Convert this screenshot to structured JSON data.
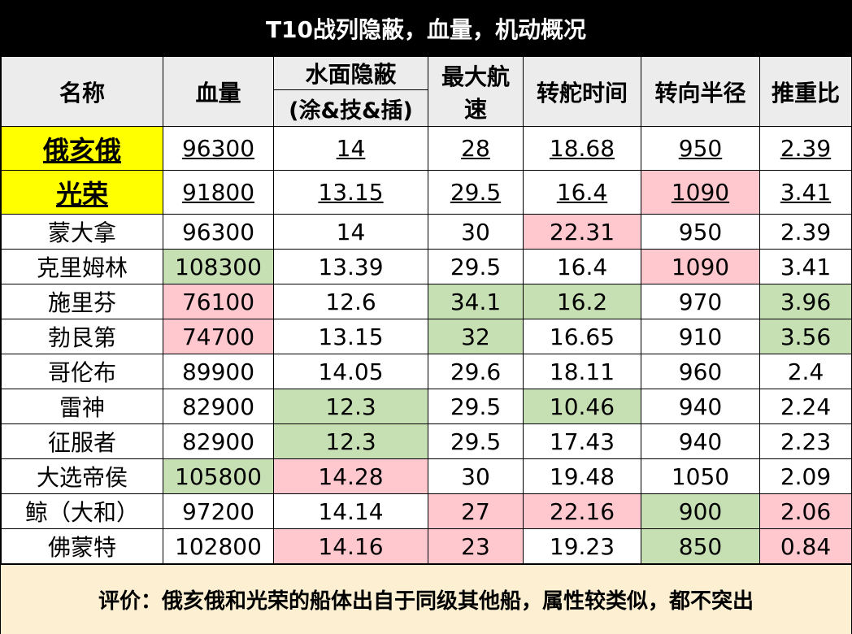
{
  "title": "T10战列隐蔽，血量，机动概况",
  "headers": {
    "name": "名称",
    "hp": "血量",
    "conceal_top": "水面隐蔽",
    "conceal_sub": "(涂&技&插)",
    "speed_l1": "最大航",
    "speed_l2": "速",
    "rudder": "转舵时间",
    "turn": "转向半径",
    "thrust": "推重比"
  },
  "rows": [
    {
      "name": "俄亥俄",
      "hp": "96300",
      "conceal": "14",
      "speed": "28",
      "rudder": "18.68",
      "turn": "950",
      "thrust": "2.39",
      "highlight": true,
      "colors": {}
    },
    {
      "name": "光荣",
      "hp": "91800",
      "conceal": "13.15",
      "speed": "29.5",
      "rudder": "16.4",
      "turn": "1090",
      "thrust": "3.41",
      "highlight": true,
      "colors": {
        "turn": "pink"
      }
    },
    {
      "name": "蒙大拿",
      "hp": "96300",
      "conceal": "14",
      "speed": "30",
      "rudder": "22.31",
      "turn": "950",
      "thrust": "2.39",
      "highlight": false,
      "colors": {
        "rudder": "pink"
      }
    },
    {
      "name": "克里姆林",
      "hp": "108300",
      "conceal": "13.39",
      "speed": "29.5",
      "rudder": "16.4",
      "turn": "1090",
      "thrust": "3.41",
      "highlight": false,
      "colors": {
        "hp": "green",
        "turn": "pink"
      }
    },
    {
      "name": "施里芬",
      "hp": "76100",
      "conceal": "12.6",
      "speed": "34.1",
      "rudder": "16.2",
      "turn": "970",
      "thrust": "3.96",
      "highlight": false,
      "colors": {
        "hp": "pink",
        "speed": "green",
        "rudder": "green",
        "thrust": "green"
      }
    },
    {
      "name": "勃艮第",
      "hp": "74700",
      "conceal": "13.15",
      "speed": "32",
      "rudder": "16.65",
      "turn": "910",
      "thrust": "3.56",
      "highlight": false,
      "colors": {
        "hp": "pink",
        "speed": "green",
        "thrust": "green"
      }
    },
    {
      "name": "哥伦布",
      "hp": "89900",
      "conceal": "14.05",
      "speed": "29.6",
      "rudder": "18.11",
      "turn": "960",
      "thrust": "2.4",
      "highlight": false,
      "colors": {}
    },
    {
      "name": "雷神",
      "hp": "82900",
      "conceal": "12.3",
      "speed": "29.5",
      "rudder": "10.46",
      "turn": "940",
      "thrust": "2.24",
      "highlight": false,
      "colors": {
        "conceal": "green",
        "rudder": "green"
      }
    },
    {
      "name": "征服者",
      "hp": "82900",
      "conceal": "12.3",
      "speed": "29.5",
      "rudder": "17.43",
      "turn": "940",
      "thrust": "2.23",
      "highlight": false,
      "colors": {
        "conceal": "green"
      }
    },
    {
      "name": "大选帝侯",
      "hp": "105800",
      "conceal": "14.28",
      "speed": "30",
      "rudder": "19.48",
      "turn": "1050",
      "thrust": "2.09",
      "highlight": false,
      "colors": {
        "hp": "green",
        "conceal": "pink"
      }
    },
    {
      "name": "鲸（大和）",
      "hp": "97200",
      "conceal": "14.14",
      "speed": "27",
      "rudder": "22.16",
      "turn": "900",
      "thrust": "2.06",
      "highlight": false,
      "colors": {
        "speed": "pink",
        "rudder": "pink",
        "turn": "green",
        "thrust": "pink"
      }
    },
    {
      "name": "佛蒙特",
      "hp": "102800",
      "conceal": "14.16",
      "speed": "23",
      "rudder": "19.23",
      "turn": "850",
      "thrust": "0.84",
      "highlight": false,
      "colors": {
        "conceal": "pink",
        "speed": "pink",
        "turn": "green",
        "thrust": "pink"
      }
    }
  ],
  "footer": "评价：俄亥俄和光荣的船体出自于同级其他船，属性较类似，都不突出",
  "palette": {
    "green": "#c6e0b4",
    "pink": "#ffc7ce",
    "yellow": "#ffff00",
    "header_bg": "#ececec",
    "footer_bg": "#fdefd2"
  }
}
